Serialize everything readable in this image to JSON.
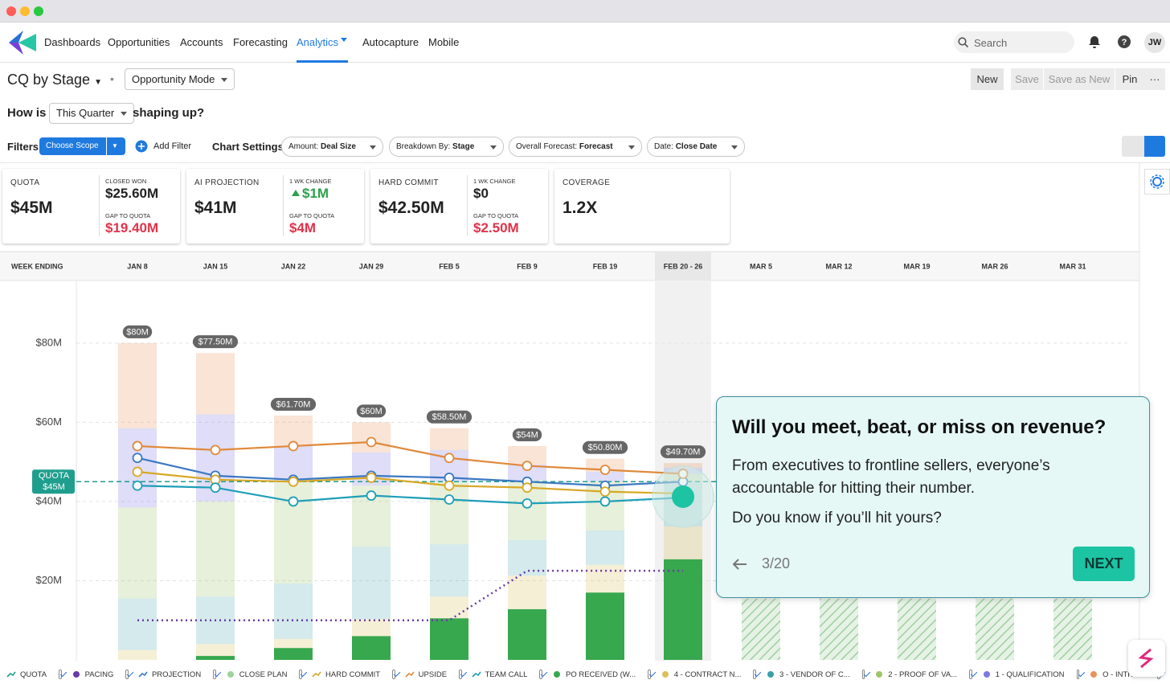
{
  "nav": {
    "items": [
      "Dashboards",
      "Opportunities",
      "Accounts",
      "Forecasting",
      "Analytics",
      "Autocapture",
      "Mobile"
    ],
    "active": 4,
    "search_placeholder": "Search",
    "user_initials": "JW"
  },
  "toolbar": {
    "view_title": "CQ by Stage",
    "mode": "Opportunity Mode",
    "buttons": [
      "New",
      "Save",
      "Save as New",
      "Pin"
    ]
  },
  "question": {
    "prefix": "How is",
    "period": "This Quarter",
    "suffix": "shaping up?"
  },
  "filters": {
    "label": "Filters",
    "scope": "Choose Scope",
    "add": "Add Filter",
    "settings_label": "Chart Settings",
    "settings": [
      {
        "key": "Amount:",
        "value": "Deal Size"
      },
      {
        "key": "Breakdown By:",
        "value": "Stage"
      },
      {
        "key": "Overall Forecast:",
        "value": "Forecast"
      },
      {
        "key": "Date:",
        "value": "Close Date"
      }
    ]
  },
  "kpis": [
    {
      "label": "QUOTA",
      "value": "$45M",
      "details": [
        {
          "label": "CLOSED WON",
          "value": "$25.60M",
          "tone": "neutral"
        },
        {
          "label": "GAP TO QUOTA",
          "value": "$19.40M",
          "tone": "negative"
        }
      ]
    },
    {
      "label": "AI PROJECTION",
      "value": "$41M",
      "details": [
        {
          "label": "1 WK CHANGE",
          "value": "$1M",
          "tone": "positive"
        },
        {
          "label": "GAP TO QUOTA",
          "value": "$4M",
          "tone": "negative"
        }
      ]
    },
    {
      "label": "HARD COMMIT",
      "value": "$42.50M",
      "details": [
        {
          "label": "1 WK CHANGE",
          "value": "$0",
          "tone": "neutral"
        },
        {
          "label": "GAP TO QUOTA",
          "value": "$2.50M",
          "tone": "negative"
        }
      ]
    },
    {
      "label": "COVERAGE",
      "value": "1.2X"
    }
  ],
  "chart_data": {
    "type": "stacked-bar-line",
    "x_header": "WEEK ENDING",
    "categories": [
      "JAN 8",
      "JAN 15",
      "JAN 22",
      "JAN 29",
      "FEB 5",
      "FEB 9",
      "FEB 19",
      "FEB 20 - 26",
      "MAR 5",
      "MAR 12",
      "MAR 19",
      "MAR 26",
      "MAR 31"
    ],
    "highlight": 7,
    "ylim": [
      0,
      95.6
    ],
    "yticks": [
      {
        "value": 20,
        "label": "$20M"
      },
      {
        "value": 40,
        "label": "$40M"
      },
      {
        "value": 60,
        "label": "$60M"
      },
      {
        "value": 80,
        "label": "$80M"
      }
    ],
    "grid": true,
    "quota": {
      "name": "QUOTA",
      "value": 45,
      "value_label": "$45M",
      "color": "#1f9e8e"
    },
    "pacing": {
      "name": "PACING",
      "color": "#6a3aa8",
      "values": [
        10,
        10,
        10,
        10,
        10,
        22.5,
        22.5,
        22.5,
        null,
        null,
        null,
        null,
        null
      ]
    },
    "lines": [
      {
        "name": "PROJECTION",
        "color": "#3a78c2",
        "values": [
          51,
          46.5,
          45.5,
          46.5,
          46,
          45,
          44,
          45,
          null,
          null,
          null,
          null,
          null
        ]
      },
      {
        "name": "CLOSE PLAN",
        "color": "#9fd39a"
      },
      {
        "name": "HARD COMMIT",
        "color": "#d8a825",
        "values": [
          47.5,
          45.5,
          45,
          46,
          44,
          43.5,
          42.5,
          42,
          null,
          null,
          null,
          null,
          null
        ]
      },
      {
        "name": "UPSIDE",
        "color": "#e0893a",
        "values": [
          54,
          53,
          54,
          55,
          51,
          49,
          48,
          47,
          null,
          null,
          null,
          null,
          null
        ]
      },
      {
        "name": "TEAM CALL",
        "color": "#1e9fb8",
        "values": [
          44,
          43.5,
          40,
          41.5,
          40.5,
          39.5,
          40,
          41,
          null,
          null,
          null,
          null,
          null
        ]
      }
    ],
    "stacks": [
      {
        "name": "PO RECEIVED (W...",
        "color": "#37a84e",
        "fill_opacity": 1,
        "values": [
          0,
          1,
          3,
          6,
          10.5,
          12.8,
          17,
          25.4,
          null,
          null,
          null,
          null,
          null
        ]
      },
      {
        "name": "4 - CONTRACT N...",
        "color": "#d9c05a",
        "fill_opacity": 0.25,
        "values": [
          2.5,
          3,
          2.3,
          4.3,
          5.5,
          8.5,
          7,
          8.3,
          null,
          null,
          null,
          null,
          null
        ]
      },
      {
        "name": "3 - VENDOR OF C...",
        "color": "#3a9fa8",
        "fill_opacity": 0.22,
        "values": [
          13,
          12,
          14,
          18.3,
          13.2,
          9,
          8.7,
          11.3,
          null,
          null,
          null,
          null,
          null
        ]
      },
      {
        "name": "2 - PROOF OF VA...",
        "color": "#9ec46a",
        "fill_opacity": 0.25,
        "values": [
          23,
          24,
          25.7,
          15.4,
          15.8,
          15,
          12.3,
          2,
          null,
          null,
          null,
          null,
          null
        ]
      },
      {
        "name": "1 - QUALIFICATION",
        "color": "#7f78e0",
        "fill_opacity": 0.25,
        "values": [
          20,
          22,
          9,
          8.4,
          8,
          4,
          2.5,
          1.5,
          null,
          null,
          null,
          null,
          null
        ]
      },
      {
        "name": "O - INTRO...",
        "color": "#e8925a",
        "fill_opacity": 0.25,
        "values": [
          21.5,
          15.5,
          7.7,
          7.6,
          5.5,
          4.7,
          3.3,
          1.2,
          null,
          null,
          null,
          null,
          null
        ]
      }
    ],
    "projected_values": [
      null,
      null,
      null,
      null,
      null,
      null,
      null,
      null,
      15.5,
      15.5,
      15.5,
      15.5,
      15.5
    ],
    "projected_color": "#37a84e",
    "totals": [
      80,
      77.5,
      61.7,
      60,
      58.5,
      54,
      50.8,
      49.7,
      null,
      null,
      null,
      null,
      null
    ],
    "total_labels": [
      "$80M",
      "$77.50M",
      "$61.70M",
      "$60M",
      "$58.50M",
      "$54M",
      "$50.80M",
      "$49.70M",
      null,
      null,
      null,
      null,
      null
    ]
  },
  "tour": {
    "title": "Will you meet, beat, or miss on revenue?",
    "body": "From executives to frontline sellers, everyone’s accountable for hitting their number.",
    "question": "Do you know if you’ll hit yours?",
    "step": "3/20",
    "next": "NEXT"
  }
}
